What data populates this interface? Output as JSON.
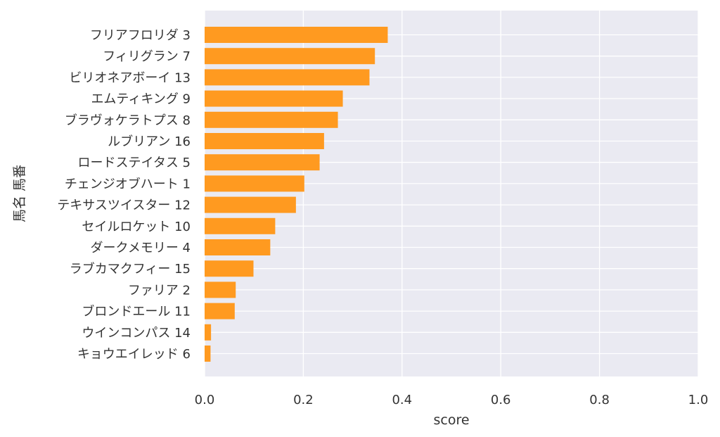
{
  "chart_data": {
    "type": "bar",
    "orientation": "horizontal",
    "xlabel": "score",
    "ylabel": "馬名 馬番",
    "xlim": [
      0.0,
      1.0
    ],
    "xticks": [
      "0.0",
      "0.2",
      "0.4",
      "0.6",
      "0.8",
      "1.0"
    ],
    "grid": true,
    "bar_color": "#ff9a20",
    "plot_background": "#eaeaf2",
    "grid_color": "#ffffff",
    "categories": [
      "フリアフロリダ 3",
      "フィリグラン 7",
      "ビリオネアボーイ 13",
      "エムティキング 9",
      "ブラヴォケラトプス 8",
      "ルブリアン 16",
      "ロードステイタス 5",
      "チェンジオブハート 1",
      "テキサスツイスター 12",
      "セイルロケット 10",
      "ダークメモリー 4",
      "ラブカマクフィー 15",
      "ファリア 2",
      "ブロンドエール 11",
      "ウインコンパス 14",
      "キョウエイレッド 6"
    ],
    "values": [
      0.371,
      0.345,
      0.334,
      0.28,
      0.27,
      0.242,
      0.233,
      0.202,
      0.185,
      0.143,
      0.133,
      0.099,
      0.063,
      0.061,
      0.013,
      0.012
    ]
  }
}
